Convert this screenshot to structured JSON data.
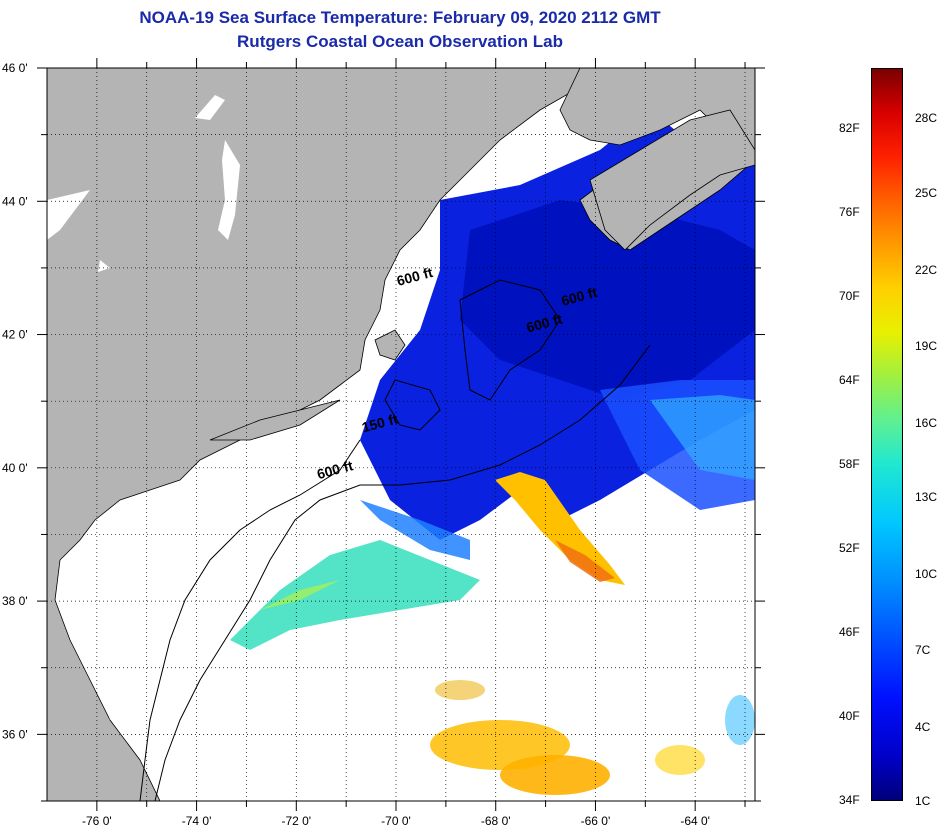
{
  "title": {
    "line1": "NOAA-19 Sea Surface Temperature:  February 09, 2020 2112 GMT",
    "line2": "Rutgers Coastal Ocean Observation Lab"
  },
  "map": {
    "lon_range": [
      -77.0,
      -62.8
    ],
    "lat_range": [
      35.0,
      46.0
    ],
    "grid": "dotted",
    "x_ticks": [
      {
        "value": -76,
        "label": "-76 0'"
      },
      {
        "value": -74,
        "label": "-74 0'"
      },
      {
        "value": -72,
        "label": "-72 0'"
      },
      {
        "value": -70,
        "label": "-70 0'"
      },
      {
        "value": -68,
        "label": "-68 0'"
      },
      {
        "value": -66,
        "label": "-66 0'"
      },
      {
        "value": -64,
        "label": "-64 0'"
      }
    ],
    "y_ticks": [
      {
        "value": 46,
        "label": "46 0'"
      },
      {
        "value": 44,
        "label": "44 0'"
      },
      {
        "value": 42,
        "label": "42 0'"
      },
      {
        "value": 40,
        "label": "40 0'"
      },
      {
        "value": 38,
        "label": "38 0'"
      },
      {
        "value": 36,
        "label": "36 0'"
      }
    ],
    "contour_labels": [
      {
        "text": "600 ft",
        "lon": -69.6,
        "lat": 42.8
      },
      {
        "text": "600 ft",
        "lon": -66.3,
        "lat": 42.5
      },
      {
        "text": "600 ft",
        "lon": -67.0,
        "lat": 42.1
      },
      {
        "text": "150 ft",
        "lon": -70.3,
        "lat": 40.6
      },
      {
        "text": "600 ft",
        "lon": -71.2,
        "lat": 39.9
      }
    ],
    "colors": {
      "land": "#b4b4b4",
      "no_data": "#ffffff"
    }
  },
  "colorbar": {
    "fahrenheit_labels": [
      "82F",
      "76F",
      "70F",
      "64F",
      "58F",
      "52F",
      "46F",
      "40F",
      "34F"
    ],
    "celsius_labels": [
      "28C",
      "25C",
      "22C",
      "19C",
      "16C",
      "13C",
      "10C",
      "7C",
      "4C",
      "1C"
    ]
  }
}
